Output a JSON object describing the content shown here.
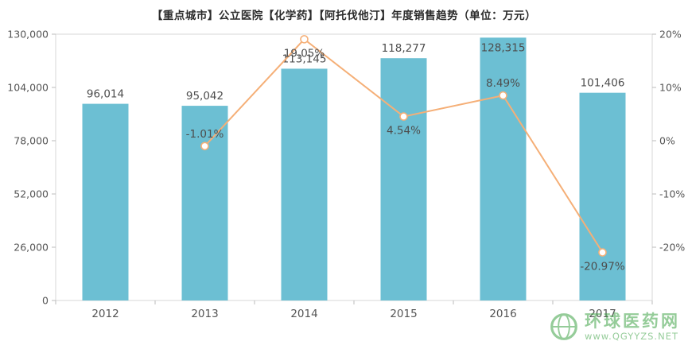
{
  "chart_data": {
    "type": "bar",
    "title": "【重点城市】公立医院【化学药】【阿托伐他汀】年度销售趋势（单位：万元）",
    "categories": [
      "2012",
      "2013",
      "2014",
      "2015",
      "2016",
      "2017"
    ],
    "series": [
      {
        "name": "annual-sales",
        "type": "bar",
        "values": [
          96014,
          95042,
          113145,
          118277,
          128315,
          101406
        ],
        "labels": [
          "96,014",
          "95,042",
          "113,145",
          "118,277",
          "128,315",
          "101,406"
        ],
        "color": "#6CBFD3"
      },
      {
        "name": "growth-rate",
        "type": "line",
        "x_indices": [
          1,
          2,
          3,
          4,
          5
        ],
        "values": [
          -1.01,
          19.05,
          4.54,
          8.49,
          -20.97
        ],
        "labels": [
          "-1.01%",
          "19.05%",
          "4.54%",
          "8.49%",
          "-20.97%"
        ],
        "label_side": [
          "top",
          "bottom",
          "bottom",
          "top",
          "bottom"
        ],
        "color": "#F5AF77",
        "marker_fill": "#ffffff"
      }
    ],
    "left_axis": {
      "min": 0,
      "max": 130000,
      "tick_labels": [
        "0",
        "26,000",
        "52,000",
        "78,000",
        "104,000",
        "130,000"
      ]
    },
    "right_axis": {
      "min": -30,
      "max": 20,
      "ticks": [
        20,
        10,
        0,
        -10,
        -20
      ],
      "tick_labels": [
        "20%",
        "10%",
        "0%",
        "-10%",
        "-20%"
      ]
    },
    "grid": false,
    "legend": false,
    "border_color": "#d7d7d7",
    "tick_color": "#bbbbbb"
  },
  "watermark": {
    "name": "环球医药网",
    "url": "www.QGYYZS.NET",
    "color": "#3FA347"
  }
}
